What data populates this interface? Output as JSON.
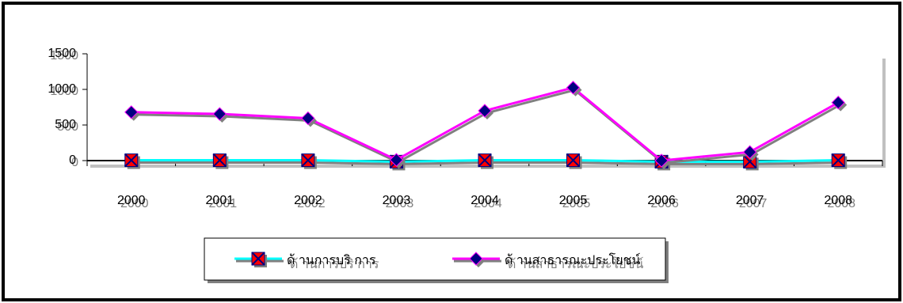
{
  "chart_data": {
    "type": "line",
    "title": "",
    "xlabel": "",
    "ylabel": "",
    "categories": [
      "2000",
      "2001",
      "2002",
      "2003",
      "2004",
      "2005",
      "2006",
      "2007",
      "2008"
    ],
    "y_ticks": [
      "0",
      "500",
      "1000",
      "1500"
    ],
    "ylim": [
      0,
      1500
    ],
    "grid": false,
    "legend_position": "bottom",
    "series": [
      {
        "name": "ด้ านการบริ การ",
        "values": [
          5,
          5,
          5,
          -15,
          5,
          5,
          -15,
          -15,
          5
        ],
        "line_color": "#00ffff",
        "marker": "x-square",
        "marker_fill": "#ff0000",
        "marker_stroke": "#000080"
      },
      {
        "name": "ด้ านสาธารณะประโยชน์",
        "values": [
          680,
          655,
          595,
          10,
          700,
          1025,
          0,
          120,
          815
        ],
        "line_color": "#ff00ff",
        "marker": "diamond",
        "marker_fill": "#000080",
        "marker_stroke": "#ff00ff"
      }
    ]
  }
}
